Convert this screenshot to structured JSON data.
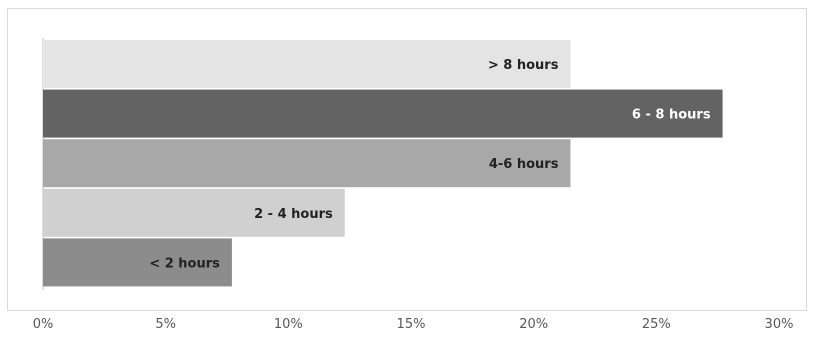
{
  "chart_data": {
    "type": "bar",
    "orientation": "horizontal",
    "categories": [
      "> 8 hours",
      "6 - 8 hours",
      "4-6 hours",
      "2 - 4 hours",
      "< 2 hours"
    ],
    "values": [
      21.5,
      27.7,
      21.5,
      12.3,
      7.7
    ],
    "colors": [
      "#e4e4e4",
      "#636363",
      "#a8a8a8",
      "#d0d0d0",
      "#8c8c8c"
    ],
    "label_colors": [
      "#222222",
      "#ffffff",
      "#222222",
      "#222222",
      "#222222"
    ],
    "xlim": [
      0,
      30
    ],
    "xticks": [
      "0%",
      "5%",
      "10%",
      "15%",
      "20%",
      "25%",
      "30%"
    ],
    "title": "",
    "xlabel": "",
    "ylabel": "",
    "grid": false,
    "legend": "none"
  }
}
